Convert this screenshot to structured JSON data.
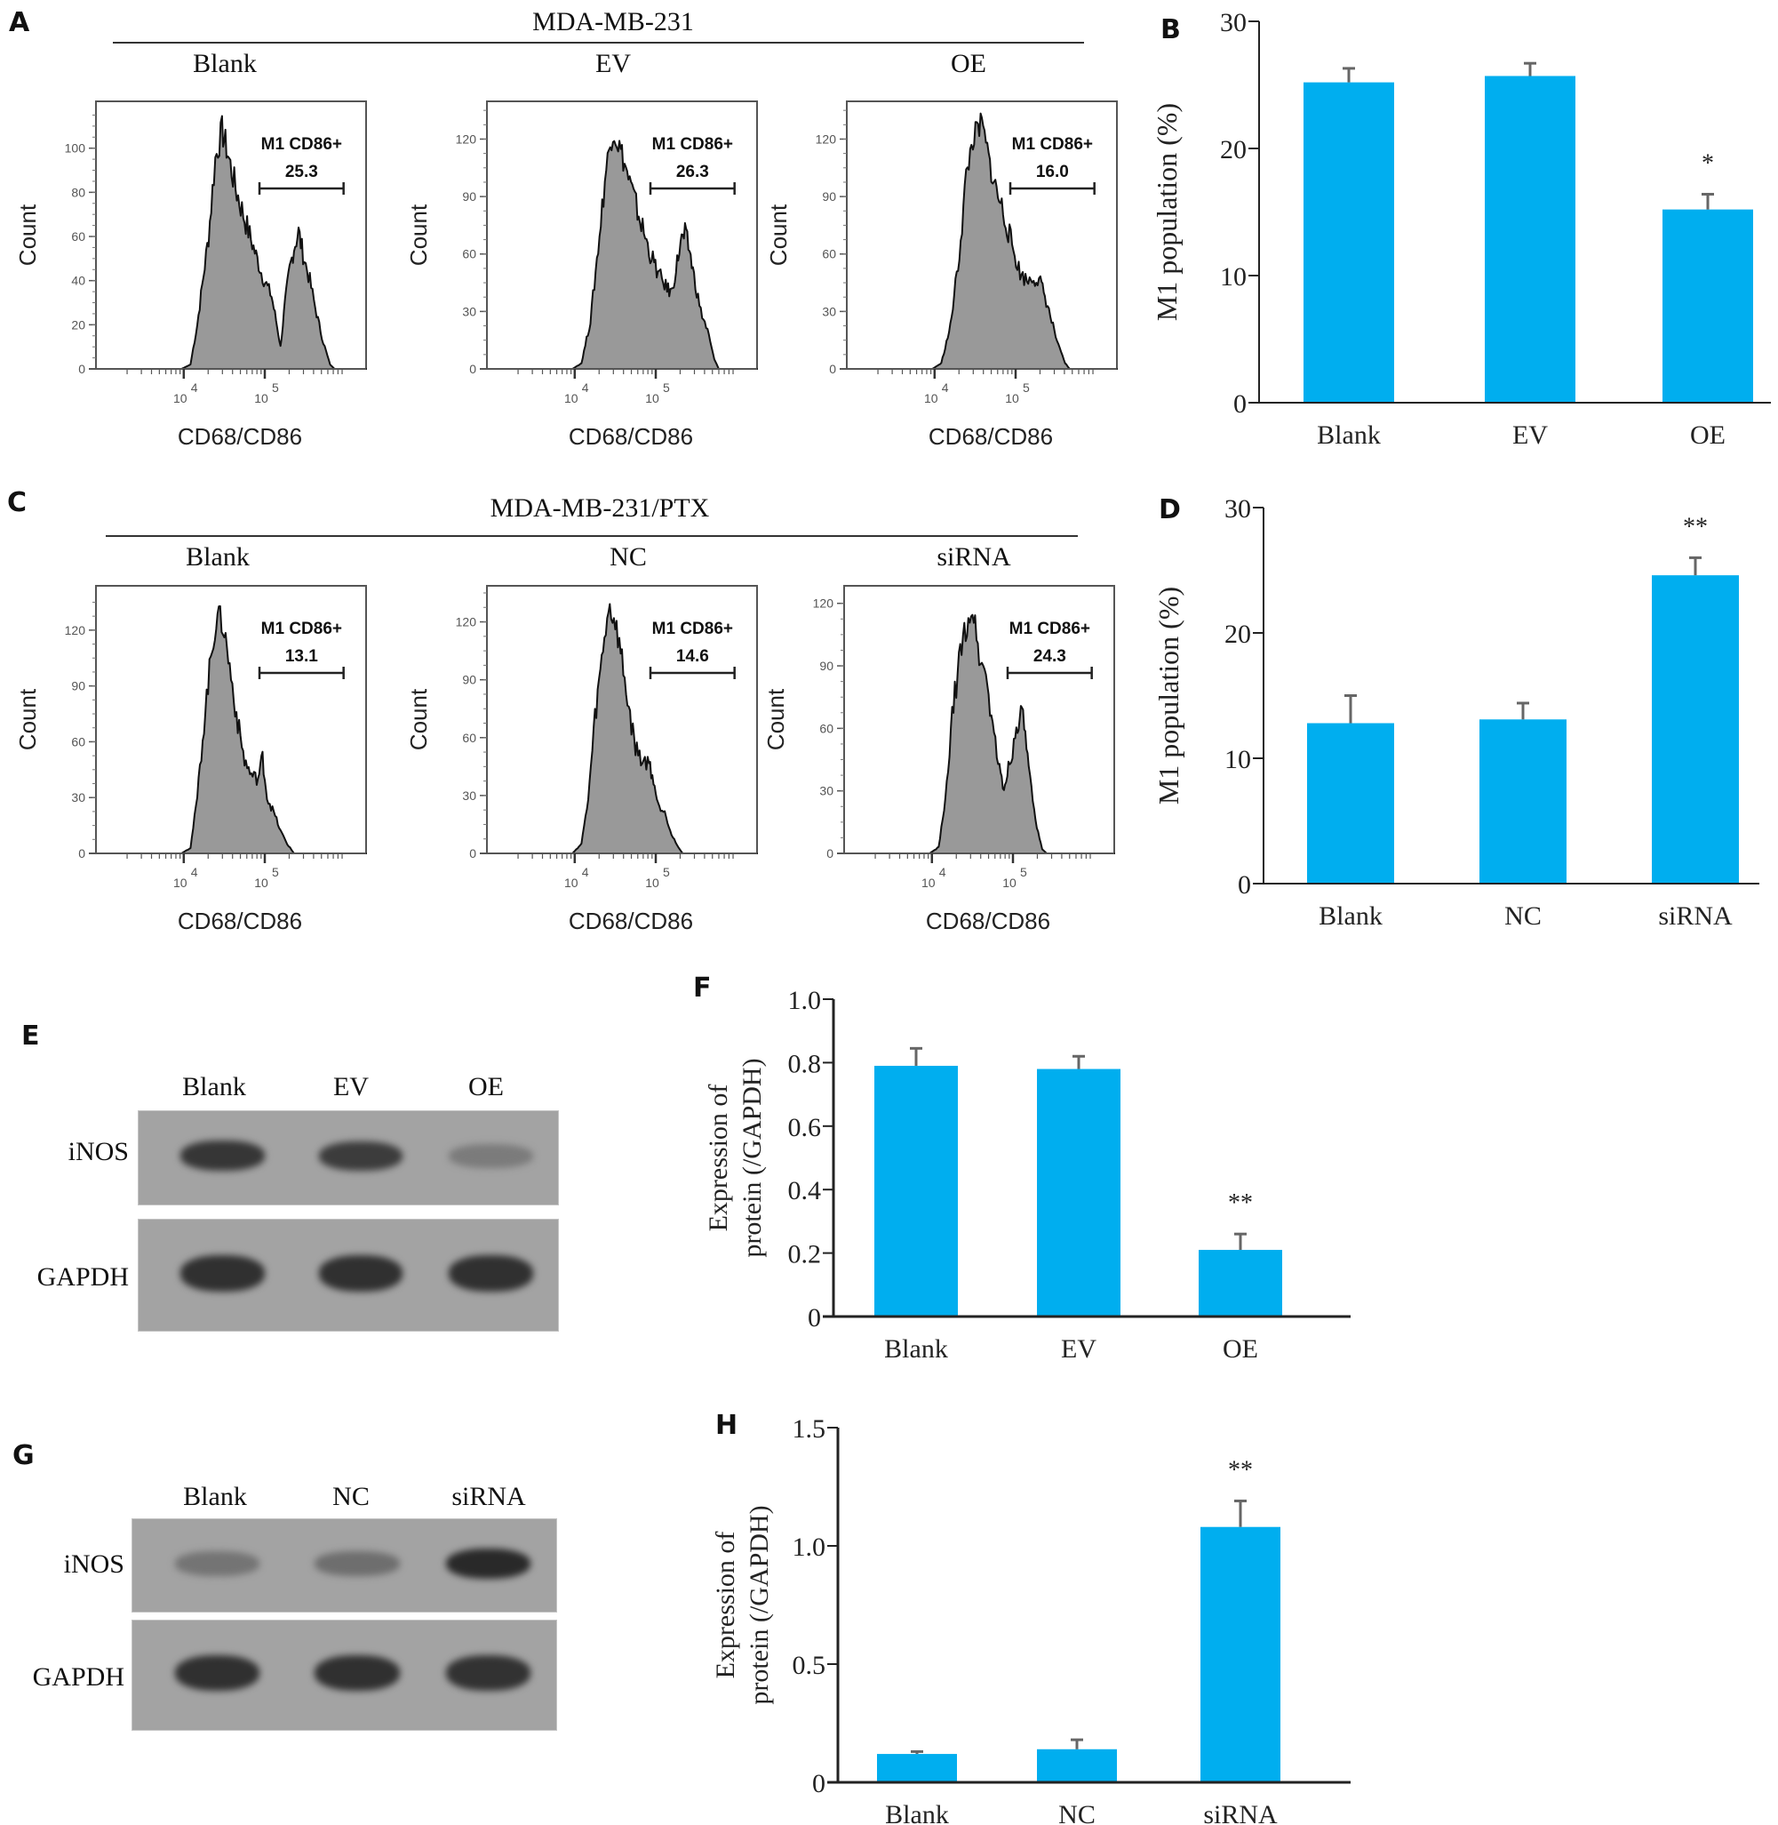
{
  "panels": {
    "A": {
      "letter": "A",
      "group_title": "MDA-MB-231"
    },
    "B": {
      "letter": "B"
    },
    "C": {
      "letter": "C",
      "group_title": "MDA-MB-231/PTX"
    },
    "D": {
      "letter": "D"
    },
    "E": {
      "letter": "E"
    },
    "F": {
      "letter": "F"
    },
    "G": {
      "letter": "G"
    },
    "H": {
      "letter": "H"
    }
  },
  "flow_common": {
    "ylabel": "Count",
    "xlabel": "CD68/CD86",
    "gate_label": "M1 CD86+",
    "x_tick_labels": [
      {
        "base": "10",
        "exp": "4"
      },
      {
        "base": "10",
        "exp": "5"
      }
    ],
    "fill_color": "#999999",
    "line_color": "#111111"
  },
  "flow_plots": [
    {
      "panel": "A",
      "condition": "Blank",
      "gate_value": "25.3",
      "y_ticks": [
        0,
        20,
        40,
        60,
        80,
        100
      ],
      "ymax": 118,
      "profile": [
        [
          0.0,
          0
        ],
        [
          0.38,
          0
        ],
        [
          0.42,
          2
        ],
        [
          0.45,
          20
        ],
        [
          0.5,
          60
        ],
        [
          0.53,
          95
        ],
        [
          0.56,
          108
        ],
        [
          0.58,
          100
        ],
        [
          0.62,
          82
        ],
        [
          0.66,
          68
        ],
        [
          0.7,
          55
        ],
        [
          0.74,
          42
        ],
        [
          0.78,
          33
        ],
        [
          0.8,
          22
        ],
        [
          0.82,
          10
        ],
        [
          0.84,
          30
        ],
        [
          0.86,
          45
        ],
        [
          0.88,
          55
        ],
        [
          0.9,
          62
        ],
        [
          0.92,
          52
        ],
        [
          0.95,
          40
        ],
        [
          0.98,
          25
        ],
        [
          1.01,
          12
        ],
        [
          1.04,
          2
        ],
        [
          1.06,
          0
        ],
        [
          1.2,
          0
        ]
      ],
      "peak_x": 0.56
    },
    {
      "panel": "A",
      "condition": "EV",
      "gate_value": "26.3",
      "y_ticks": [
        0,
        30,
        60,
        90,
        120
      ],
      "ymax": 136,
      "profile": [
        [
          0.0,
          0
        ],
        [
          0.38,
          0
        ],
        [
          0.42,
          3
        ],
        [
          0.46,
          25
        ],
        [
          0.5,
          70
        ],
        [
          0.53,
          105
        ],
        [
          0.56,
          125
        ],
        [
          0.6,
          112
        ],
        [
          0.64,
          95
        ],
        [
          0.68,
          78
        ],
        [
          0.72,
          62
        ],
        [
          0.76,
          50
        ],
        [
          0.8,
          42
        ],
        [
          0.82,
          40
        ],
        [
          0.84,
          52
        ],
        [
          0.86,
          66
        ],
        [
          0.88,
          70
        ],
        [
          0.9,
          62
        ],
        [
          0.92,
          48
        ],
        [
          0.95,
          30
        ],
        [
          0.98,
          20
        ],
        [
          1.01,
          5
        ],
        [
          1.03,
          0
        ],
        [
          1.2,
          0
        ]
      ],
      "peak_x": 0.56
    },
    {
      "panel": "A",
      "condition": "OE",
      "gate_value": "16.0",
      "y_ticks": [
        0,
        30,
        60,
        90,
        120
      ],
      "ymax": 136,
      "profile": [
        [
          0.0,
          0
        ],
        [
          0.38,
          0
        ],
        [
          0.42,
          3
        ],
        [
          0.46,
          22
        ],
        [
          0.5,
          60
        ],
        [
          0.53,
          100
        ],
        [
          0.56,
          120
        ],
        [
          0.6,
          128
        ],
        [
          0.63,
          110
        ],
        [
          0.66,
          95
        ],
        [
          0.7,
          80
        ],
        [
          0.74,
          62
        ],
        [
          0.77,
          50
        ],
        [
          0.8,
          46
        ],
        [
          0.83,
          48
        ],
        [
          0.86,
          45
        ],
        [
          0.88,
          38
        ],
        [
          0.91,
          25
        ],
        [
          0.94,
          12
        ],
        [
          0.97,
          3
        ],
        [
          0.99,
          0
        ],
        [
          1.2,
          0
        ]
      ],
      "peak_x": 0.58
    },
    {
      "panel": "C",
      "condition": "Blank",
      "gate_value": "13.1",
      "y_ticks": [
        0,
        30,
        60,
        90,
        120
      ],
      "ymax": 140,
      "profile": [
        [
          0.0,
          0
        ],
        [
          0.38,
          0
        ],
        [
          0.42,
          3
        ],
        [
          0.45,
          30
        ],
        [
          0.48,
          70
        ],
        [
          0.51,
          105
        ],
        [
          0.54,
          130
        ],
        [
          0.57,
          120
        ],
        [
          0.6,
          95
        ],
        [
          0.63,
          70
        ],
        [
          0.66,
          50
        ],
        [
          0.69,
          42
        ],
        [
          0.72,
          40
        ],
        [
          0.74,
          52
        ],
        [
          0.76,
          30
        ],
        [
          0.79,
          22
        ],
        [
          0.82,
          12
        ],
        [
          0.85,
          5
        ],
        [
          0.88,
          0
        ],
        [
          1.2,
          0
        ]
      ],
      "peak_x": 0.54
    },
    {
      "panel": "C",
      "condition": "NC",
      "gate_value": "14.6",
      "y_ticks": [
        0,
        30,
        60,
        90,
        120
      ],
      "ymax": 135,
      "profile": [
        [
          0.0,
          0
        ],
        [
          0.38,
          0
        ],
        [
          0.42,
          5
        ],
        [
          0.45,
          28
        ],
        [
          0.48,
          70
        ],
        [
          0.51,
          100
        ],
        [
          0.54,
          128
        ],
        [
          0.57,
          120
        ],
        [
          0.6,
          100
        ],
        [
          0.63,
          75
        ],
        [
          0.66,
          55
        ],
        [
          0.69,
          48
        ],
        [
          0.72,
          47
        ],
        [
          0.74,
          38
        ],
        [
          0.76,
          25
        ],
        [
          0.79,
          22
        ],
        [
          0.82,
          10
        ],
        [
          0.85,
          3
        ],
        [
          0.87,
          0
        ],
        [
          1.2,
          0
        ]
      ],
      "peak_x": 0.54
    },
    {
      "panel": "C",
      "condition": "siRNA",
      "gate_value": "24.3",
      "y_ticks": [
        0,
        30,
        60,
        90,
        120
      ],
      "ymax": 125,
      "profile": [
        [
          0.0,
          0
        ],
        [
          0.38,
          0
        ],
        [
          0.42,
          3
        ],
        [
          0.45,
          25
        ],
        [
          0.48,
          65
        ],
        [
          0.51,
          92
        ],
        [
          0.54,
          108
        ],
        [
          0.57,
          118
        ],
        [
          0.6,
          95
        ],
        [
          0.63,
          85
        ],
        [
          0.66,
          62
        ],
        [
          0.69,
          40
        ],
        [
          0.71,
          30
        ],
        [
          0.73,
          42
        ],
        [
          0.76,
          55
        ],
        [
          0.78,
          68
        ],
        [
          0.8,
          62
        ],
        [
          0.82,
          40
        ],
        [
          0.85,
          15
        ],
        [
          0.88,
          2
        ],
        [
          0.9,
          0
        ],
        [
          1.2,
          0
        ]
      ],
      "peak_x": 0.57
    }
  ],
  "blots": [
    {
      "panel": "E",
      "lanes": [
        "Blank",
        "EV",
        "OE"
      ],
      "rows": [
        {
          "label": "iNOS",
          "intensities": [
            0.85,
            0.8,
            0.3
          ]
        },
        {
          "label": "GAPDH",
          "intensities": [
            0.9,
            0.9,
            0.9
          ]
        }
      ]
    },
    {
      "panel": "G",
      "lanes": [
        "Blank",
        "NC",
        "siRNA"
      ],
      "rows": [
        {
          "label": "iNOS",
          "intensities": [
            0.35,
            0.4,
            0.95
          ]
        },
        {
          "label": "GAPDH",
          "intensities": [
            0.9,
            0.9,
            0.88
          ]
        }
      ]
    }
  ],
  "chart_data": [
    {
      "panel": "B",
      "type": "bar",
      "title": "",
      "xlabel": "",
      "ylabel": "M1 population (%)",
      "categories": [
        "Blank",
        "EV",
        "OE"
      ],
      "values": [
        25.2,
        25.7,
        15.2
      ],
      "error": [
        1.1,
        1.0,
        1.2
      ],
      "significance": [
        "",
        "",
        "*"
      ],
      "ylim": [
        0,
        30
      ],
      "yticks": [
        0,
        10,
        20,
        30
      ],
      "ytick_labels": [
        "0",
        "10",
        "20",
        "30"
      ],
      "bar_color": "#00aeef",
      "grid": false,
      "legend": "none"
    },
    {
      "panel": "D",
      "type": "bar",
      "title": "",
      "xlabel": "",
      "ylabel": "M1 population (%)",
      "categories": [
        "Blank",
        "NC",
        "siRNA"
      ],
      "values": [
        12.8,
        13.1,
        24.6
      ],
      "error": [
        2.2,
        1.3,
        1.4
      ],
      "significance": [
        "",
        "",
        "**"
      ],
      "ylim": [
        0,
        30
      ],
      "yticks": [
        0,
        10,
        20,
        30
      ],
      "ytick_labels": [
        "0",
        "10",
        "20",
        "30"
      ],
      "bar_color": "#00aeef",
      "grid": false,
      "legend": "none"
    },
    {
      "panel": "F",
      "type": "bar",
      "title": "",
      "xlabel": "",
      "ylabel": [
        "Expression of",
        "protein (/GAPDH)"
      ],
      "categories": [
        "Blank",
        "EV",
        "OE"
      ],
      "values": [
        0.79,
        0.78,
        0.21
      ],
      "error": [
        0.055,
        0.04,
        0.05
      ],
      "significance": [
        "",
        "",
        "**"
      ],
      "ylim": [
        0,
        1.0
      ],
      "yticks": [
        0,
        0.2,
        0.4,
        0.6,
        0.8,
        1.0
      ],
      "ytick_labels": [
        "0",
        "0.2",
        "0.4",
        "0.6",
        "0.8",
        "1.0"
      ],
      "bar_color": "#00aeef",
      "grid": false,
      "legend": "none"
    },
    {
      "panel": "H",
      "type": "bar",
      "title": "",
      "xlabel": "",
      "ylabel": [
        "Expression of",
        "protein (/GAPDH)"
      ],
      "categories": [
        "Blank",
        "NC",
        "siRNA"
      ],
      "values": [
        0.12,
        0.14,
        1.08
      ],
      "error": [
        0.01,
        0.04,
        0.11
      ],
      "significance": [
        "",
        "",
        "**"
      ],
      "ylim": [
        0,
        1.5
      ],
      "yticks": [
        0,
        0.5,
        1.0,
        1.5
      ],
      "ytick_labels": [
        "0",
        "0.5",
        "1.0",
        "1.5"
      ],
      "bar_color": "#00aeef",
      "grid": false,
      "legend": "none"
    }
  ]
}
